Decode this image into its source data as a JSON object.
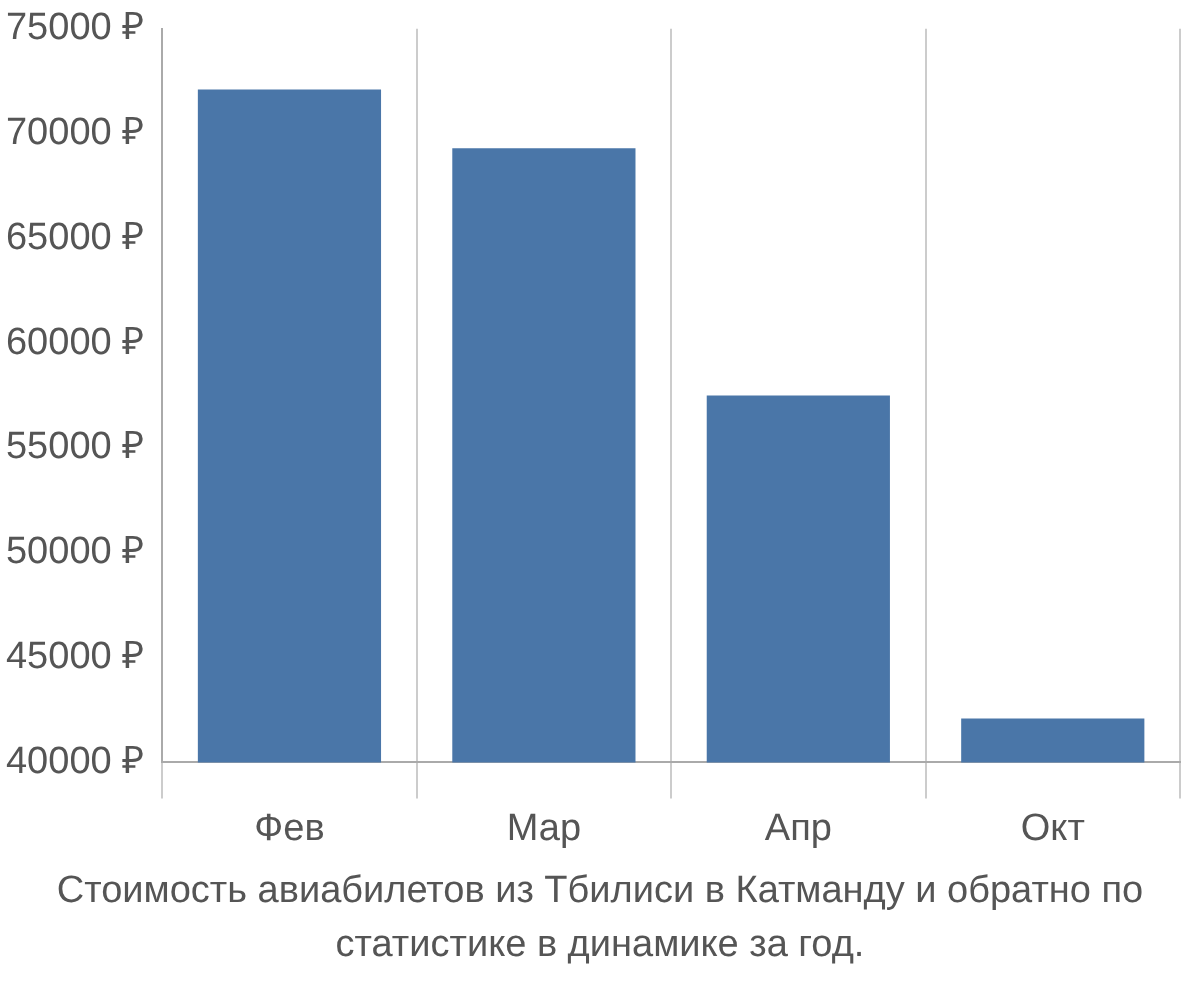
{
  "chart_data": {
    "type": "bar",
    "categories": [
      "Фев",
      "Мар",
      "Апр",
      "Окт"
    ],
    "values": [
      72100,
      69300,
      57500,
      42100
    ],
    "color": "#4a76a8",
    "ylim": [
      40000,
      75000
    ],
    "yticks": [
      {
        "value": 40000,
        "label": "40000 ₽"
      },
      {
        "value": 45000,
        "label": "45000 ₽"
      },
      {
        "value": 50000,
        "label": "50000 ₽"
      },
      {
        "value": 55000,
        "label": "55000 ₽"
      },
      {
        "value": 60000,
        "label": "60000 ₽"
      },
      {
        "value": 65000,
        "label": "65000 ₽"
      },
      {
        "value": 70000,
        "label": "70000 ₽"
      },
      {
        "value": 75000,
        "label": "75000 ₽"
      }
    ],
    "grid": "x",
    "annotations": [
      "Стоимость авиабилетов из Тбилиси в Катманду и обратно по статистике в динамике за год."
    ]
  }
}
